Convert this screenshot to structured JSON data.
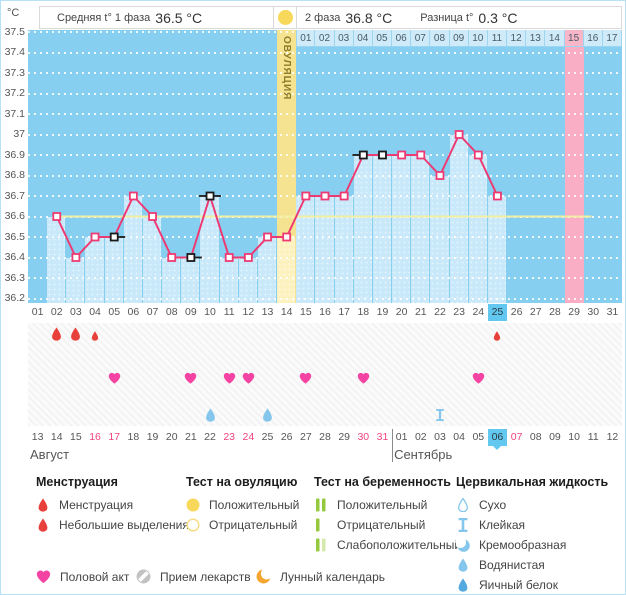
{
  "header": {
    "unit_label": "°C",
    "phase1_label": "Средняя t° 1 фаза",
    "phase1_value": "36.5 °C",
    "phase2_label": "2 фаза",
    "phase2_value": "36.8 °C",
    "diff_label": "Разница t°",
    "diff_value": "0.3 °C",
    "ovulation_column_label": "ОВУЛЯЦИЯ"
  },
  "chart_data": {
    "type": "line",
    "ylabel": "°C",
    "ylim": [
      36.2,
      37.5
    ],
    "ytick_step": 0.1,
    "yticks": [
      "37.5",
      "37.4",
      "37.3",
      "37.2",
      "37.1",
      "37",
      "36.9",
      "36.8",
      "36.7",
      "36.6",
      "36.5",
      "36.4",
      "36.3",
      "36.2"
    ],
    "cycle_days": [
      "01",
      "02",
      "03",
      "04",
      "05",
      "06",
      "07",
      "08",
      "09",
      "10",
      "11",
      "12",
      "13",
      "14",
      "15",
      "16",
      "17",
      "18",
      "19",
      "20",
      "21",
      "22",
      "23",
      "24",
      "25",
      "26",
      "27",
      "28",
      "29",
      "30",
      "31"
    ],
    "current_cycle_day": 25,
    "ovulation_day": 14,
    "expected_period_day": 29,
    "coverline_value": 36.6,
    "dpo_row": {
      "labels": [
        "01",
        "02",
        "03",
        "04",
        "05",
        "06",
        "07",
        "08",
        "09",
        "10",
        "11",
        "12",
        "13",
        "14",
        "15",
        "16",
        "17"
      ],
      "start_cycle_day": 15,
      "highlighted_label": "15"
    },
    "series": [
      {
        "name": "temperature",
        "points": [
          {
            "day": 2,
            "t": 36.6
          },
          {
            "day": 3,
            "t": 36.4
          },
          {
            "day": 4,
            "t": 36.5
          },
          {
            "day": 5,
            "t": 36.5,
            "flag": "right"
          },
          {
            "day": 6,
            "t": 36.7
          },
          {
            "day": 7,
            "t": 36.6
          },
          {
            "day": 8,
            "t": 36.4
          },
          {
            "day": 9,
            "t": 36.4,
            "flag": "right"
          },
          {
            "day": 10,
            "t": 36.7,
            "flag": "both"
          },
          {
            "day": 11,
            "t": 36.4
          },
          {
            "day": 12,
            "t": 36.4
          },
          {
            "day": 13,
            "t": 36.5
          },
          {
            "day": 14,
            "t": 36.5
          },
          {
            "day": 15,
            "t": 36.7
          },
          {
            "day": 16,
            "t": 36.7
          },
          {
            "day": 17,
            "t": 36.7
          },
          {
            "day": 18,
            "t": 36.9,
            "flag": "left"
          },
          {
            "day": 19,
            "t": 36.9,
            "flag": "none"
          },
          {
            "day": 20,
            "t": 36.9
          },
          {
            "day": 21,
            "t": 36.9
          },
          {
            "day": 22,
            "t": 36.8
          },
          {
            "day": 23,
            "t": 37.0
          },
          {
            "day": 24,
            "t": 36.9
          },
          {
            "day": 25,
            "t": 36.7
          }
        ]
      }
    ]
  },
  "events": {
    "menstruation": [
      {
        "day": 2,
        "intensity": "normal"
      },
      {
        "day": 3,
        "intensity": "normal"
      },
      {
        "day": 4,
        "intensity": "light"
      },
      {
        "day": 25,
        "intensity": "light"
      }
    ],
    "intercourse_days": [
      5,
      9,
      11,
      12,
      15,
      18,
      24
    ],
    "cervical_fluid": [
      {
        "day": 10,
        "kind": "watery"
      },
      {
        "day": 13,
        "kind": "watery"
      },
      {
        "day": 22,
        "kind": "sticky"
      }
    ]
  },
  "calendar": {
    "dates": [
      {
        "label": "13"
      },
      {
        "label": "14"
      },
      {
        "label": "15"
      },
      {
        "label": "16",
        "red": true
      },
      {
        "label": "17",
        "red": true
      },
      {
        "label": "18"
      },
      {
        "label": "19"
      },
      {
        "label": "20"
      },
      {
        "label": "21"
      },
      {
        "label": "22"
      },
      {
        "label": "23",
        "red": true
      },
      {
        "label": "24",
        "red": true
      },
      {
        "label": "25"
      },
      {
        "label": "26"
      },
      {
        "label": "27"
      },
      {
        "label": "28"
      },
      {
        "label": "29"
      },
      {
        "label": "30",
        "red": true
      },
      {
        "label": "31",
        "red": true
      },
      {
        "label": "01"
      },
      {
        "label": "02"
      },
      {
        "label": "03"
      },
      {
        "label": "04"
      },
      {
        "label": "05"
      },
      {
        "label": "06",
        "today": true
      },
      {
        "label": "07",
        "red": true
      },
      {
        "label": "08"
      },
      {
        "label": "09"
      },
      {
        "label": "10"
      },
      {
        "label": "11"
      },
      {
        "label": "12"
      }
    ],
    "months": [
      {
        "name": "Август",
        "at_index": 0
      },
      {
        "name": "Сентябрь",
        "at_index": 19
      }
    ],
    "separator_index": 19
  },
  "legend": {
    "columns": [
      {
        "header": "Менструация",
        "x": 35,
        "items": [
          {
            "icon": "menstruation-drop-icon",
            "label": "Менструация"
          },
          {
            "icon": "spotting-drop-icon",
            "label": "Небольшие выделения"
          }
        ]
      },
      {
        "header": "Тест на овуляцию",
        "x": 185,
        "items": [
          {
            "icon": "ovulation-positive-icon",
            "label": "Положительный"
          },
          {
            "icon": "ovulation-negative-icon",
            "label": "Отрицательный"
          }
        ]
      },
      {
        "header": "Тест на беременность",
        "x": 313,
        "items": [
          {
            "icon": "pregnancy-positive-icon",
            "label": "Положительный"
          },
          {
            "icon": "pregnancy-negative-icon",
            "label": "Отрицательный"
          },
          {
            "icon": "pregnancy-weak-icon",
            "label": "Слабоположительный"
          }
        ]
      },
      {
        "header": "Цервикальная жидкость",
        "x": 455,
        "items": [
          {
            "icon": "fluid-dry-icon",
            "label": "Сухо"
          },
          {
            "icon": "fluid-sticky-icon",
            "label": "Клейкая"
          },
          {
            "icon": "fluid-creamy-icon",
            "label": "Кремообразная"
          },
          {
            "icon": "fluid-watery-icon",
            "label": "Водянистая"
          },
          {
            "icon": "fluid-eggwhite-icon",
            "label": "Яичный белок"
          }
        ]
      }
    ],
    "bottom": [
      {
        "icon": "intercourse-heart-icon",
        "label": "Половой акт",
        "x": 35
      },
      {
        "icon": "medication-pill-icon",
        "label": "Прием лекарств",
        "x": 135
      },
      {
        "icon": "moon-calendar-icon",
        "label": "Лунный календарь",
        "x": 255
      }
    ]
  },
  "colors": {
    "chart_bg": "#86cff1",
    "area_fill": "#c9e9fa",
    "ovulation_column": "#f6e391",
    "ovulation_area": "#fbf2c0",
    "period_column": "#f9aec5",
    "dpo_highlight": "#f9b6c9",
    "line": "#ee3a72",
    "coverline": "#f2efa2",
    "flagged_marker": "#1a1a1a",
    "today_highlight": "#62c8ef",
    "red_date": "#f0437e",
    "menstruation": "#e8413c",
    "intercourse": "#f443a3",
    "fluid_blue": "#85c6ec",
    "fluid_dark_blue": "#54a9de",
    "ovulation_test_positive": "#f8d85a",
    "pregnancy_test_green": "#94c83d",
    "pregnancy_test_light_green": "#d6e9ad",
    "moon": "#f7a531",
    "pill": "#c2c2c2"
  }
}
